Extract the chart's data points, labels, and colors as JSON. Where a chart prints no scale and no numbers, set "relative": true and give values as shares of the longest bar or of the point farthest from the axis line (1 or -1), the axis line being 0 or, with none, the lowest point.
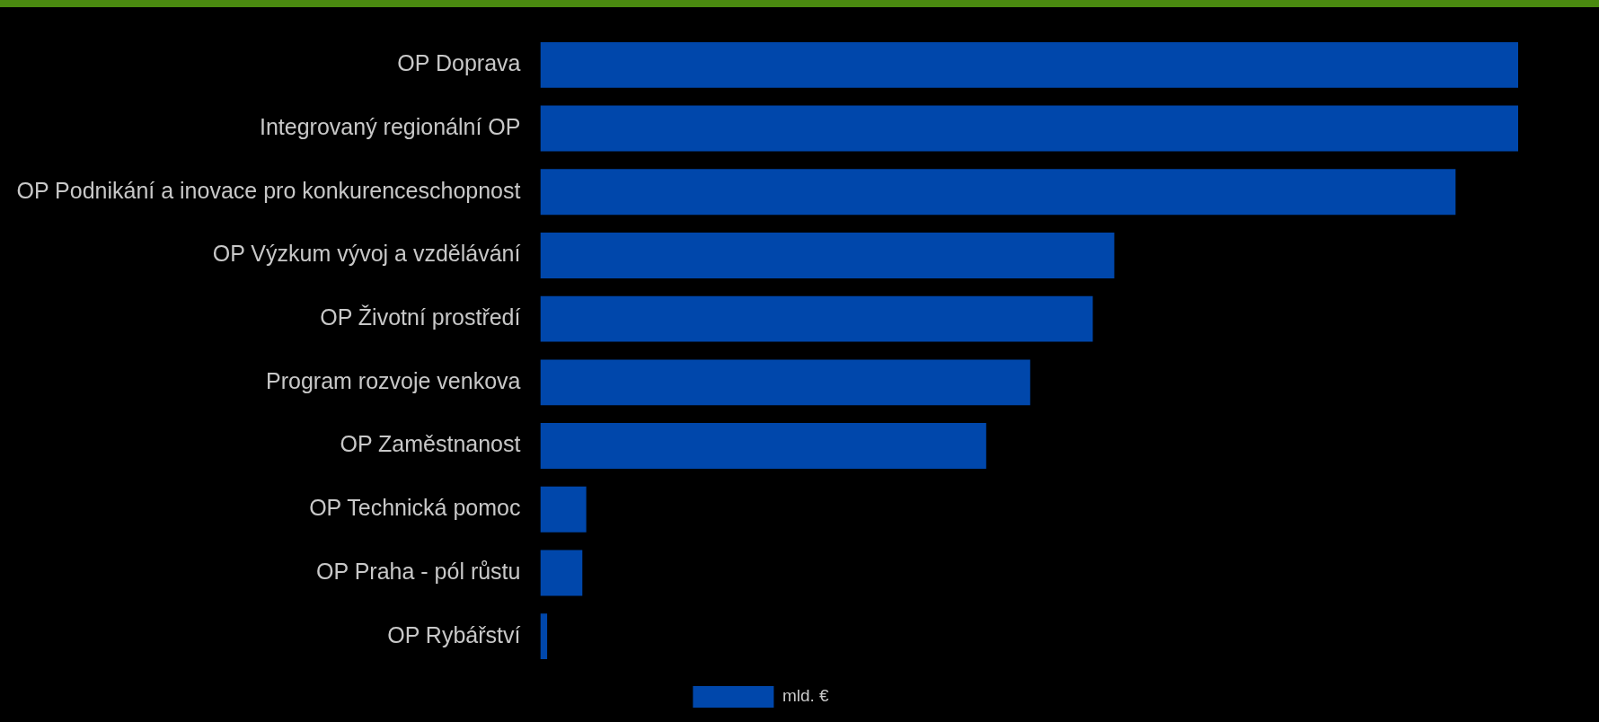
{
  "chart_data": {
    "type": "bar",
    "orientation": "horizontal",
    "relative": true,
    "categories": [
      "OP Doprava",
      "Integrovaný regionální OP",
      "OP Podnikání a inovace pro konkurenceschopnost",
      "OP Výzkum vývoj a vzdělávání",
      "OP Životní prostředí",
      "Program rozvoje venkova",
      "OP Zaměstnanost",
      "OP Technická pomoc",
      "OP Praha - pól růstu",
      "OP Rybářství"
    ],
    "series": [
      {
        "name": "mld. €",
        "color": "#0047ab",
        "values": [
          1,
          1,
          0.936,
          0.587,
          0.565,
          0.501,
          0.456,
          0.047,
          0.043,
          0.007
        ]
      }
    ],
    "legend": "bottom"
  }
}
